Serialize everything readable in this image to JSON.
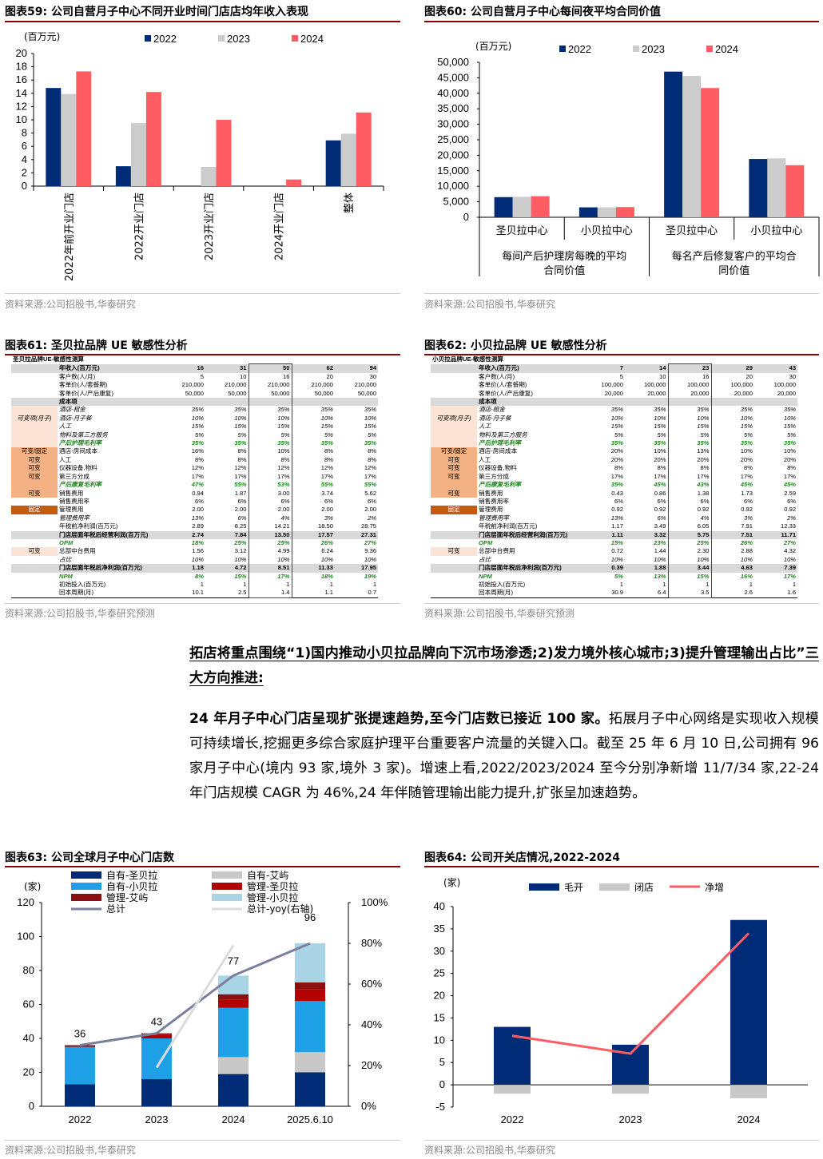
{
  "fig59": {
    "title": "图表59:  公司自营月子中心不同开业时间门店店均年收入表现",
    "source": "资料来源:公司招股书,华泰研究"
  },
  "fig60": {
    "title": "图表60:  公司自营月子中心每间夜平均合同价值",
    "source": "资料来源:公司招股书,华泰研究"
  },
  "fig61": {
    "title": "图表61:  圣贝拉品牌 UE 敏感性分析",
    "source": "资料来源:公司招股书,华泰研究预测"
  },
  "fig62": {
    "title": "图表62:  小贝拉品牌 UE 敏感性分析",
    "source": "资料来源:公司招股书,华泰研究预测"
  },
  "fig63": {
    "title": "图表63:  公司全球月子中心门店数",
    "source": "资料来源:公司招股书,华泰研究"
  },
  "fig64": {
    "title": "图表64:  公司开关店情况,2022-2024",
    "source": "资料来源:公司招股书,华泰研究"
  },
  "text": {
    "heading": "拓店将重点围绕“1)国内推动小贝拉品牌向下沉市场渗透;2)发力境外核心城市;3)提升管理输出占比”三大方向推进:",
    "p_bold": "24 年月子中心门店呈现扩张提速趋势,至今门店数已接近 100 家。",
    "p_rest": "拓展月子中心网络是实现收入规模可持续增长,挖掘更多综合家庭护理平台重要客户流量的关键入口。截至 25 年 6 月 10 日,公司拥有 96 家月子中心(境内 93 家,境外 3 家)。增速上看,2022/2023/2024 至今分别净新增 11/7/34 家,22-24 年门店规模 CAGR 为 46%,24 年伴随管理输出能力提升,扩张呈加速趋势。"
  },
  "chart_data": [
    {
      "id": "fig59",
      "type": "bar",
      "unit": "(百万元)",
      "ylim": [
        0,
        20
      ],
      "yticks": [
        0,
        2,
        4,
        6,
        8,
        10,
        12,
        14,
        16,
        18,
        20
      ],
      "categories": [
        "2022年前开业门店",
        "2022开业门店",
        "2023开业门店",
        "2024开业门店",
        "整体"
      ],
      "series": [
        {
          "name": "2022",
          "color": "#002c77",
          "values": [
            14.8,
            3.0,
            null,
            null,
            6.9
          ]
        },
        {
          "name": "2023",
          "color": "#cccccc",
          "values": [
            13.9,
            9.5,
            2.9,
            null,
            7.9
          ]
        },
        {
          "name": "2024",
          "color": "#ff5c64",
          "values": [
            17.3,
            14.2,
            10.0,
            1.0,
            11.1
          ]
        }
      ]
    },
    {
      "id": "fig60",
      "type": "bar",
      "unit": "(百万元)",
      "ylim": [
        0,
        50000
      ],
      "yticks": [
        0,
        5000,
        10000,
        15000,
        20000,
        25000,
        30000,
        35000,
        40000,
        45000,
        50000
      ],
      "yticklabels": [
        "0",
        "5,000",
        "10,000",
        "15,000",
        "20,000",
        "25,000",
        "30,000",
        "35,000",
        "40,000",
        "45,000",
        "50,000"
      ],
      "categories": [
        "圣贝拉中心",
        "小贝拉中心",
        "圣贝拉中心",
        "小贝拉中心"
      ],
      "groups": [
        "每间产后护理房每晚的平均合同价值",
        "每名产后修复客户的平均合同价值"
      ],
      "series": [
        {
          "name": "2022",
          "color": "#002c77",
          "values": [
            6500,
            3200,
            47000,
            18800
          ]
        },
        {
          "name": "2023",
          "color": "#cccccc",
          "values": [
            6600,
            3200,
            45600,
            19000
          ]
        },
        {
          "name": "2024",
          "color": "#ff5c64",
          "values": [
            6800,
            3300,
            41700,
            16800
          ]
        }
      ]
    },
    {
      "id": "fig63",
      "type": "bar",
      "unit": "(家)",
      "ylim": [
        0,
        120
      ],
      "y2lim": [
        0,
        1
      ],
      "yticks": [
        0,
        20,
        40,
        60,
        80,
        100,
        120
      ],
      "y2ticklabels": [
        "0%",
        "20%",
        "40%",
        "60%",
        "80%",
        "100%"
      ],
      "categories": [
        "2022",
        "2023",
        "2024",
        "2025.6.10"
      ],
      "series": [
        {
          "name": "自有-圣贝拉",
          "color": "#002c77",
          "values": [
            13,
            16,
            19,
            20
          ]
        },
        {
          "name": "自有-艾屿",
          "color": "#c8c8c8",
          "values": [
            0,
            0,
            10,
            12
          ]
        },
        {
          "name": "自有-小贝拉",
          "color": "#1ea0e6",
          "values": [
            22,
            24,
            29,
            30
          ]
        },
        {
          "name": "管理-圣贝拉",
          "color": "#b30000",
          "values": [
            0,
            2,
            5,
            7
          ]
        },
        {
          "name": "管理-艾屿",
          "color": "#8b1010",
          "values": [
            1,
            1,
            3,
            4
          ]
        },
        {
          "name": "管理-小贝拉",
          "color": "#a8d4e6",
          "values": [
            0,
            0,
            11,
            23
          ]
        }
      ],
      "lines": [
        {
          "name": "总计",
          "color": "#7b7f9e",
          "values": [
            36,
            43,
            77,
            96
          ]
        },
        {
          "name": "总计-yoy(右轴)",
          "color": "#dcdcdc",
          "values": [
            null,
            0.19,
            0.79,
            null
          ]
        }
      ],
      "labels": [
        "36",
        "43",
        "77",
        "96"
      ]
    },
    {
      "id": "fig64",
      "type": "bar+line",
      "unit": "(家)",
      "ylim": [
        -5,
        40
      ],
      "yticks": [
        -5,
        0,
        5,
        10,
        15,
        20,
        25,
        30,
        35,
        40
      ],
      "categories": [
        "2022",
        "2023",
        "2024"
      ],
      "series": [
        {
          "name": "毛开",
          "color": "#002c77",
          "values": [
            13,
            9,
            37
          ]
        },
        {
          "name": "闭店",
          "color": "#c8c8c8",
          "values": [
            -2,
            -2,
            -3
          ]
        },
        {
          "name": "净增",
          "color": "#ff5c64",
          "values": [
            11,
            7,
            34
          ],
          "kind": "line"
        }
      ]
    }
  ],
  "ue61": {
    "title": "圣贝拉品牌UE-敏感性测算",
    "header": [
      "年收入(百万元)",
      "16",
      "31",
      "50",
      "62",
      "94"
    ],
    "rows": [
      {
        "lab": "",
        "name": "客户数(人/月)",
        "v": [
          "5",
          "10",
          "16",
          "20",
          "30"
        ],
        "cls": "",
        "lc": ""
      },
      {
        "lab": "",
        "name": "客单价(人/套餐期)",
        "v": [
          "210,000",
          "210,000",
          "210,000",
          "210,000",
          "210,000"
        ],
        "cls": "",
        "lc": ""
      },
      {
        "lab": "",
        "name": "客单价(人/产后康复)",
        "v": [
          "50,000",
          "50,000",
          "50,000",
          "50,000",
          "50,000"
        ],
        "cls": "",
        "lc": ""
      },
      {
        "lab": "",
        "name": "成本项",
        "v": [
          "",
          "",
          "",
          "",
          ""
        ],
        "cls": "hdr",
        "lc": ""
      },
      {
        "lab": "",
        "name": "酒店-租金",
        "v": [
          "35%",
          "35%",
          "35%",
          "35%",
          "35%"
        ],
        "cls": "it",
        "lc": "lp"
      },
      {
        "lab": "可变项(月子)",
        "name": "酒店-月子餐",
        "v": [
          "10%",
          "10%",
          "10%",
          "10%",
          "10%"
        ],
        "cls": "it",
        "lc": "lp"
      },
      {
        "lab": "",
        "name": "人工",
        "v": [
          "15%",
          "15%",
          "15%",
          "15%",
          "15%"
        ],
        "cls": "it",
        "lc": "lp"
      },
      {
        "lab": "",
        "name": "物料及第三方服务",
        "v": [
          "5%",
          "5%",
          "5%",
          "5%",
          "5%"
        ],
        "cls": "it",
        "lc": "lp"
      },
      {
        "lab": "",
        "name": "产后护理毛利率",
        "v": [
          "35%",
          "35%",
          "35%",
          "35%",
          "35%"
        ],
        "cls": "g",
        "lc": "lp"
      },
      {
        "lab": "可变/固定",
        "name": "酒店-房间成本",
        "v": [
          "16%",
          "8%",
          "10%",
          "8%",
          "8%"
        ],
        "cls": "",
        "lc": "lo"
      },
      {
        "lab": "可变",
        "name": "人工",
        "v": [
          "8%",
          "8%",
          "8%",
          "8%",
          "8%"
        ],
        "cls": "",
        "lc": "lo"
      },
      {
        "lab": "可变",
        "name": "仪器设备,物料",
        "v": [
          "12%",
          "12%",
          "12%",
          "12%",
          "12%"
        ],
        "cls": "",
        "lc": "lo"
      },
      {
        "lab": "可变",
        "name": "第三方分成",
        "v": [
          "17%",
          "17%",
          "17%",
          "17%",
          "17%"
        ],
        "cls": "",
        "lc": "lo"
      },
      {
        "lab": "",
        "name": "产后康复毛利率",
        "v": [
          "47%",
          "55%",
          "53%",
          "55%",
          "55%"
        ],
        "cls": "g",
        "lc": "lo"
      },
      {
        "lab": "可变",
        "name": "销售费用",
        "v": [
          "0.94",
          "1.87",
          "3.00",
          "3.74",
          "5.62"
        ],
        "cls": "",
        "lc": "lo"
      },
      {
        "lab": "",
        "name": "销售费用率",
        "v": [
          "6%",
          "6%",
          "6%",
          "6%",
          "6%"
        ],
        "cls": "",
        "lc": ""
      },
      {
        "lab": "固定",
        "name": "管理费用",
        "v": [
          "2.00",
          "2.00",
          "2.00",
          "2.00",
          "2.00"
        ],
        "cls": "",
        "lc": "lo2"
      },
      {
        "lab": "",
        "name": "管理费用率",
        "v": [
          "13%",
          "6%",
          "4%",
          "3%",
          "2%"
        ],
        "cls": "it",
        "lc": ""
      },
      {
        "lab": "",
        "name": "年税前净利润(百万元)",
        "v": [
          "2.89",
          "8.25",
          "14.21",
          "18.50",
          "28.75"
        ],
        "cls": "",
        "lc": ""
      },
      {
        "lab": "",
        "name": "门店层面年税后经营利润(百万元)",
        "v": [
          "2.74",
          "7.84",
          "13.50",
          "17.57",
          "27.31"
        ],
        "cls": "hdr",
        "lc": ""
      },
      {
        "lab": "",
        "name": "OPM",
        "v": [
          "18%",
          "25%",
          "25%",
          "26%",
          "27%"
        ],
        "cls": "g",
        "lc": ""
      },
      {
        "lab": "可变",
        "name": "总部中台费用",
        "v": [
          "1.56",
          "3.12",
          "4.99",
          "6.24",
          "9.36"
        ],
        "cls": "",
        "lc": "lp"
      },
      {
        "lab": "",
        "name": "占比",
        "v": [
          "10%",
          "10%",
          "10%",
          "10%",
          "10%"
        ],
        "cls": "it",
        "lc": ""
      },
      {
        "lab": "",
        "name": "门店层面年税后净利润(百万元)",
        "v": [
          "1.18",
          "4.72",
          "8.51",
          "11.33",
          "17.95"
        ],
        "cls": "hdr",
        "lc": ""
      },
      {
        "lab": "",
        "name": "NPM",
        "v": [
          "8%",
          "15%",
          "17%",
          "18%",
          "19%"
        ],
        "cls": "g",
        "lc": ""
      },
      {
        "lab": "",
        "name": "初始投入(百万元)",
        "v": [
          "1",
          "1",
          "1",
          "1",
          "1"
        ],
        "cls": "",
        "lc": ""
      },
      {
        "lab": "",
        "name": "回本周期(月)",
        "v": [
          "10.1",
          "2.5",
          "1.4",
          "1.1",
          "0.7"
        ],
        "cls": "",
        "lc": ""
      }
    ]
  },
  "ue62": {
    "title": "小贝拉品牌UE-敏感性测算",
    "header": [
      "年收入(百万元)",
      "7",
      "14",
      "23",
      "29",
      "43"
    ],
    "rows": [
      {
        "lab": "",
        "name": "客户数(人/月)",
        "v": [
          "5",
          "10",
          "16",
          "20",
          "30"
        ],
        "cls": "",
        "lc": ""
      },
      {
        "lab": "",
        "name": "客单价(人/套餐期)",
        "v": [
          "100,000",
          "100,000",
          "100,000",
          "100,000",
          "100,000"
        ],
        "cls": "",
        "lc": ""
      },
      {
        "lab": "",
        "name": "客单价(人/产后康复)",
        "v": [
          "20,000",
          "20,000",
          "20,000",
          "20,000",
          "20,000"
        ],
        "cls": "",
        "lc": ""
      },
      {
        "lab": "",
        "name": "成本项",
        "v": [
          "",
          "",
          "",
          "",
          ""
        ],
        "cls": "hdr",
        "lc": ""
      },
      {
        "lab": "",
        "name": "酒店-租金",
        "v": [
          "35%",
          "35%",
          "35%",
          "35%",
          "35%"
        ],
        "cls": "it",
        "lc": "lp"
      },
      {
        "lab": "可变项(月子)",
        "name": "酒店-月子餐",
        "v": [
          "10%",
          "10%",
          "10%",
          "10%",
          "10%"
        ],
        "cls": "it",
        "lc": "lp"
      },
      {
        "lab": "",
        "name": "人工",
        "v": [
          "15%",
          "15%",
          "15%",
          "15%",
          "15%"
        ],
        "cls": "it",
        "lc": "lp"
      },
      {
        "lab": "",
        "name": "物料及第三方服务",
        "v": [
          "5%",
          "5%",
          "5%",
          "5%",
          "5%"
        ],
        "cls": "it",
        "lc": "lp"
      },
      {
        "lab": "",
        "name": "产后护理毛利率",
        "v": [
          "35%",
          "35%",
          "35%",
          "35%",
          "35%"
        ],
        "cls": "g",
        "lc": "lp"
      },
      {
        "lab": "可变/固定",
        "name": "酒店-房间成本",
        "v": [
          "20%",
          "10%",
          "13%",
          "10%",
          "10%"
        ],
        "cls": "",
        "lc": "lo"
      },
      {
        "lab": "可变",
        "name": "人工",
        "v": [
          "20%",
          "20%",
          "20%",
          "20%",
          "20%"
        ],
        "cls": "",
        "lc": "lo"
      },
      {
        "lab": "可变",
        "name": "仪器设备,物料",
        "v": [
          "8%",
          "8%",
          "8%",
          "8%",
          "8%"
        ],
        "cls": "",
        "lc": "lo"
      },
      {
        "lab": "可变",
        "name": "第三方分成",
        "v": [
          "17%",
          "17%",
          "17%",
          "17%",
          "17%"
        ],
        "cls": "",
        "lc": "lo"
      },
      {
        "lab": "",
        "name": "产后康复毛利率",
        "v": [
          "35%",
          "45%",
          "43%",
          "45%",
          "45%"
        ],
        "cls": "g",
        "lc": "lo"
      },
      {
        "lab": "可变",
        "name": "销售费用",
        "v": [
          "0.43",
          "0.86",
          "1.38",
          "1.73",
          "2.59"
        ],
        "cls": "",
        "lc": "lo"
      },
      {
        "lab": "",
        "name": "销售费用率",
        "v": [
          "6%",
          "6%",
          "6%",
          "6%",
          "6%"
        ],
        "cls": "",
        "lc": ""
      },
      {
        "lab": "固定",
        "name": "管理费用",
        "v": [
          "0.92",
          "0.92",
          "0.92",
          "0.92",
          "0.92"
        ],
        "cls": "",
        "lc": "lo2"
      },
      {
        "lab": "",
        "name": "管理费用率",
        "v": [
          "13%",
          "6%",
          "4%",
          "3%",
          "2%"
        ],
        "cls": "it",
        "lc": ""
      },
      {
        "lab": "",
        "name": "年税前净利润(百万元)",
        "v": [
          "1.17",
          "3.49",
          "6.05",
          "7.91",
          "12.33"
        ],
        "cls": "",
        "lc": ""
      },
      {
        "lab": "",
        "name": "门店层面年税后经营利润(百万元)",
        "v": [
          "1.11",
          "3.32",
          "5.75",
          "7.51",
          "11.71"
        ],
        "cls": "hdr",
        "lc": ""
      },
      {
        "lab": "",
        "name": "OPM",
        "v": [
          "15%",
          "23%",
          "25%",
          "26%",
          "27%"
        ],
        "cls": "g",
        "lc": ""
      },
      {
        "lab": "可变",
        "name": "总部中台费用",
        "v": [
          "0.72",
          "1.44",
          "2.30",
          "2.88",
          "4.32"
        ],
        "cls": "",
        "lc": "lp"
      },
      {
        "lab": "",
        "name": "占比",
        "v": [
          "10%",
          "10%",
          "10%",
          "10%",
          "10%"
        ],
        "cls": "it",
        "lc": ""
      },
      {
        "lab": "",
        "name": "门店层面年税后净利润(百万元)",
        "v": [
          "0.39",
          "1.88",
          "3.44",
          "4.63",
          "7.39"
        ],
        "cls": "hdr",
        "lc": ""
      },
      {
        "lab": "",
        "name": "NPM",
        "v": [
          "5%",
          "13%",
          "15%",
          "16%",
          "17%"
        ],
        "cls": "g",
        "lc": ""
      },
      {
        "lab": "",
        "name": "初始投入(百万元)",
        "v": [
          "1",
          "1",
          "1",
          "1",
          "1"
        ],
        "cls": "",
        "lc": ""
      },
      {
        "lab": "",
        "name": "回本周期(月)",
        "v": [
          "30.9",
          "6.4",
          "3.5",
          "2.6",
          "1.6"
        ],
        "cls": "",
        "lc": ""
      }
    ]
  }
}
